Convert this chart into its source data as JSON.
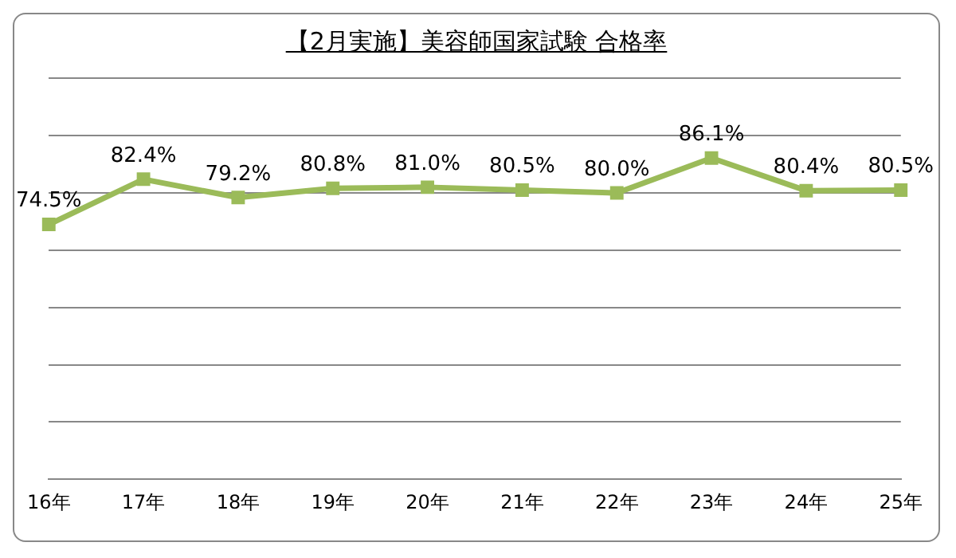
{
  "chart_data": {
    "type": "line",
    "title": "【2月実施】美容師国家試験 合格率",
    "categories": [
      "16年",
      "17年",
      "18年",
      "19年",
      "20年",
      "21年",
      "22年",
      "23年",
      "24年",
      "25年"
    ],
    "series": [
      {
        "color": "#9bbb59",
        "values": [
          74.5,
          82.4,
          79.2,
          80.8,
          81.0,
          80.5,
          80.0,
          86.1,
          80.4,
          80.5
        ],
        "value_labels": [
          "74.5%",
          "82.4%",
          "79.2%",
          "80.8%",
          "81.0%",
          "80.5%",
          "80.0%",
          "86.1%",
          "80.4%",
          "80.5%"
        ]
      }
    ],
    "ylim": [
      30,
      100
    ],
    "yticks": [
      {
        "value": 30,
        "label": null
      },
      {
        "value": 40,
        "label": null
      },
      {
        "value": 50,
        "label": null
      },
      {
        "value": 60,
        "label": null
      },
      {
        "value": 70,
        "label": null
      },
      {
        "value": 80,
        "label": null
      },
      {
        "value": 90,
        "label": null
      },
      {
        "value": 100,
        "label": null
      }
    ],
    "grid": "y",
    "legend": false,
    "marker": "square",
    "line_style": "solid"
  }
}
